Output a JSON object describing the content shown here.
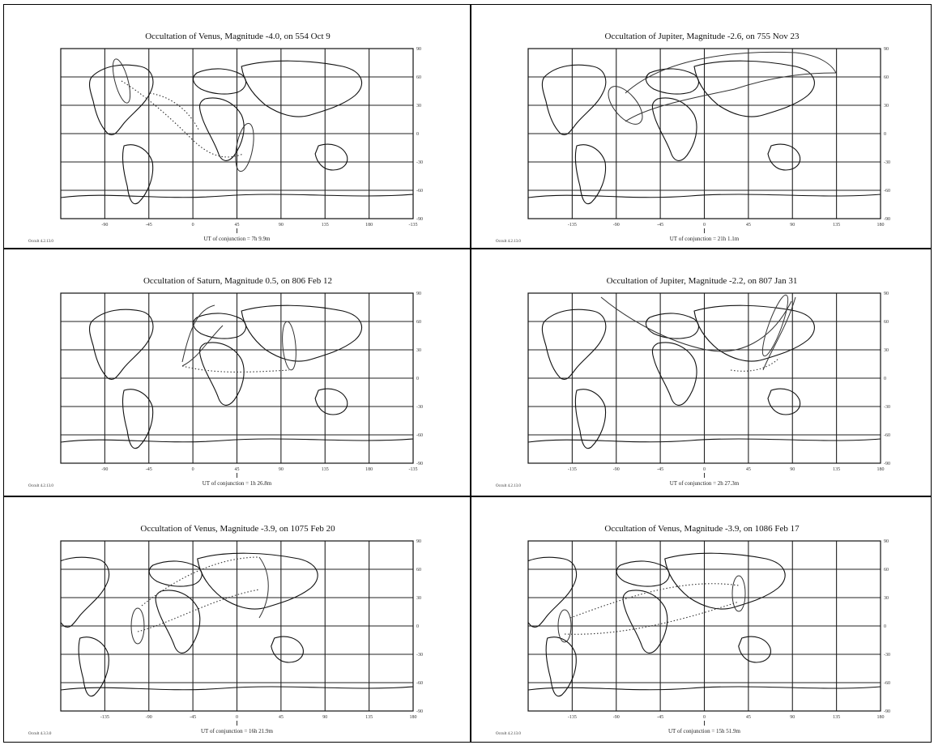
{
  "panels": [
    {
      "title": "Occultation of Venus,     Magnitude -4.0,   on   554 Oct 9",
      "lon_labels": [
        "-90",
        "-45",
        "0",
        "45",
        "90",
        "135",
        "180",
        "-135"
      ],
      "lat_labels": [
        "90",
        "60",
        "30",
        "0",
        "-30",
        "-60",
        "-90"
      ],
      "ut": "UT of conjunction = 7h  9.9m",
      "version": "Occult 4.2.13.0",
      "center_lon": 45
    },
    {
      "title": "Occultation of Jupiter,     Magnitude -2.6,   on   755 Nov 23",
      "lon_labels": [
        "-135",
        "-90",
        "-45",
        "0",
        "45",
        "90",
        "135",
        "180"
      ],
      "lat_labels": [
        "90",
        "60",
        "30",
        "0",
        "-30",
        "-60",
        "-90"
      ],
      "ut": "UT of conjunction = 21h  1.1m",
      "version": "Occult 4.2.13.0",
      "center_lon": 30
    },
    {
      "title": "Occultation of Saturn,     Magnitude 0.5,   on   806 Feb 12",
      "lon_labels": [
        "-90",
        "-45",
        "0",
        "45",
        "90",
        "135",
        "180",
        "-135"
      ],
      "lat_labels": [
        "90",
        "60",
        "30",
        "0",
        "-30",
        "-60",
        "-90"
      ],
      "ut": "UT of conjunction = 1h 26.8m",
      "version": "Occult 4.2.13.0",
      "center_lon": 45
    },
    {
      "title": "Occultation of Jupiter,     Magnitude -2.2,   on   807 Jan 31",
      "lon_labels": [
        "-135",
        "-90",
        "-45",
        "0",
        "45",
        "90",
        "135",
        "180"
      ],
      "lat_labels": [
        "90",
        "60",
        "30",
        "0",
        "-30",
        "-60",
        "-90"
      ],
      "ut": "UT of conjunction = 2h 27.3m",
      "version": "Occult 4.2.13.0",
      "center_lon": 30
    },
    {
      "title": "Occultation of Venus,     Magnitude -3.9,   on   1075 Feb 20",
      "lon_labels": [
        "-135",
        "-90",
        "-45",
        "0",
        "45",
        "90",
        "135",
        "180"
      ],
      "lat_labels": [
        "90",
        "60",
        "30",
        "0",
        "-30",
        "-60",
        "-90"
      ],
      "ut": "UT of conjunction = 16h 21.9m",
      "version": "Occult 4.3.3.0",
      "center_lon": 0
    },
    {
      "title": "Occultation of Venus,     Magnitude -3.9,   on   1086 Feb 17",
      "lon_labels": [
        "-135",
        "-90",
        "-45",
        "0",
        "45",
        "90",
        "135",
        "180"
      ],
      "lat_labels": [
        "90",
        "60",
        "30",
        "0",
        "-30",
        "-60",
        "-90"
      ],
      "ut": "UT of conjunction = 15h 51.9m",
      "version": "Occult 4.2.13.0",
      "center_lon": 0
    }
  ]
}
